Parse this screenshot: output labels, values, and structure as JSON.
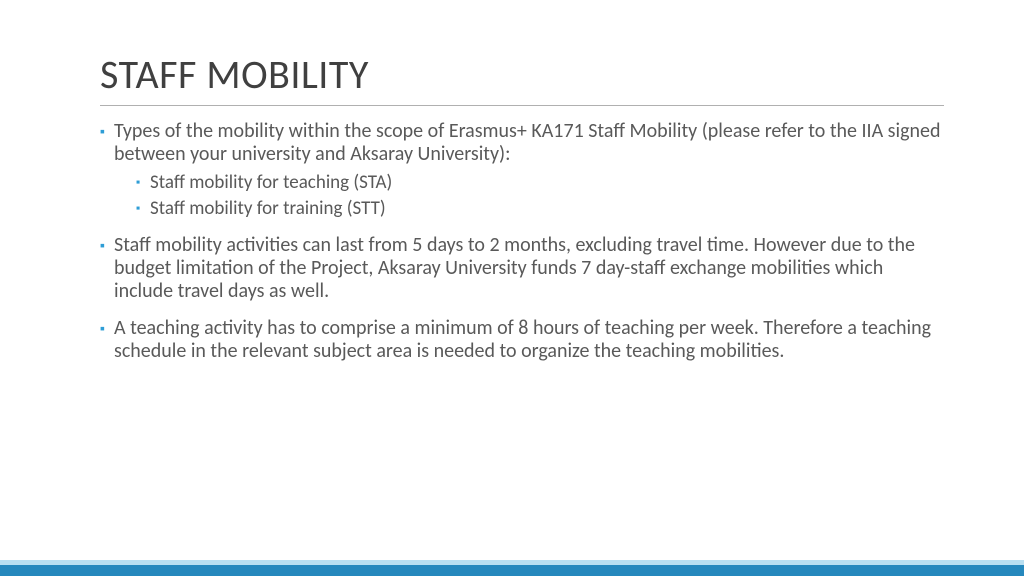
{
  "colors": {
    "bullet": "#2e9dd6",
    "text": "#595959",
    "title": "#404040",
    "bar_top": "#b9dff1",
    "bar_bottom": "#2688bd",
    "divider": "#b0b0b0",
    "background": "#ffffff"
  },
  "typography": {
    "title_fontsize": 40,
    "body_fontsize": 20,
    "sub_fontsize": 19,
    "font_family": "Segoe UI / Calibri"
  },
  "slide": {
    "title": "STAFF MOBILITY",
    "bullets": [
      {
        "text": "Types of the mobility within the scope of Erasmus+ KA171 Staff Mobility (please refer to the IIA signed between your university and Aksaray University):",
        "sub": [
          "Staff mobility for teaching (STA)",
          "Staff mobility for training (STT)"
        ]
      },
      {
        "text": "Staff mobility activities can last from 5 days to 2 months, excluding travel time. However due to the budget limitation of the Project, Aksaray University funds 7 day-staff exchange mobilities which include travel days as well.",
        "sub": []
      },
      {
        "text": "A teaching activity has to comprise a minimum of 8 hours of teaching per week. Therefore a teaching schedule in the relevant subject area is needed to organize the teaching mobilities.",
        "sub": []
      }
    ]
  }
}
